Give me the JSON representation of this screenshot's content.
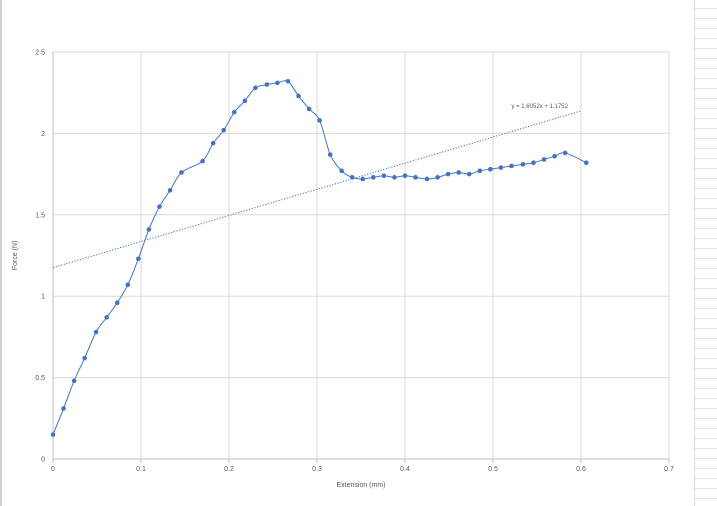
{
  "chart_data": {
    "type": "scatter",
    "title": "",
    "xlabel": "Extension (mm)",
    "ylabel": "Force (N)",
    "xlim": [
      0,
      0.7
    ],
    "ylim": [
      0,
      2.5
    ],
    "x_ticks": [
      "0",
      "0.1",
      "0.2",
      "0.3",
      "0.4",
      "0.5",
      "0.6",
      "0.7"
    ],
    "y_ticks": [
      "0",
      "0.5",
      "1",
      "1.5",
      "2",
      "2.5"
    ],
    "grid": true,
    "legend": "none",
    "series": [
      {
        "color": "#4472c4",
        "x": [
          0,
          0.012,
          0.024,
          0.036,
          0.049,
          0.061,
          0.073,
          0.085,
          0.097,
          0.109,
          0.121,
          0.133,
          0.146,
          0.17,
          0.182,
          0.194,
          0.206,
          0.218,
          0.23,
          0.243,
          0.255,
          0.267,
          0.279,
          0.291,
          0.303,
          0.315,
          0.328,
          0.34,
          0.352,
          0.364,
          0.376,
          0.388,
          0.4,
          0.412,
          0.425,
          0.437,
          0.449,
          0.461,
          0.473,
          0.485,
          0.497,
          0.509,
          0.521,
          0.534,
          0.546,
          0.558,
          0.57,
          0.582,
          0.606
        ],
        "y": [
          0.15,
          0.31,
          0.48,
          0.62,
          0.78,
          0.87,
          0.96,
          1.07,
          1.23,
          1.41,
          1.55,
          1.65,
          1.76,
          1.83,
          1.94,
          2.02,
          2.13,
          2.2,
          2.28,
          2.3,
          2.31,
          2.32,
          2.23,
          2.15,
          2.08,
          1.87,
          1.77,
          1.73,
          1.72,
          1.73,
          1.74,
          1.73,
          1.74,
          1.73,
          1.72,
          1.73,
          1.75,
          1.76,
          1.75,
          1.77,
          1.78,
          1.79,
          1.8,
          1.81,
          1.82,
          1.84,
          1.86,
          1.88,
          1.82
        ]
      }
    ],
    "trendline": {
      "type": "linear",
      "slope": 1.6052,
      "intercept": 1.1752,
      "x_range": [
        0,
        0.6
      ],
      "label": "y = 1.6052x + 1.1752",
      "color": "#4472c4"
    }
  }
}
